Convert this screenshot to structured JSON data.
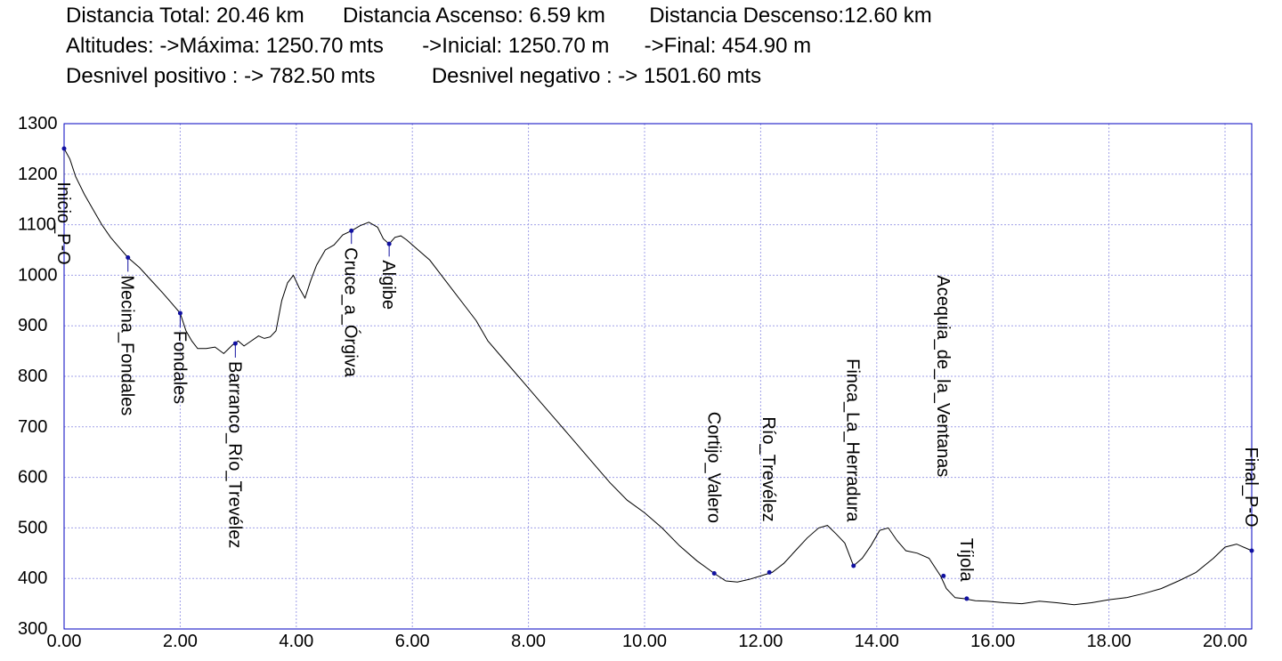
{
  "stats": {
    "row1": [
      {
        "label": "Distancia Total:",
        "value": "20.46 km"
      },
      {
        "label": "Distancia Ascenso:",
        "value": "6.59 km"
      },
      {
        "label": "Distancia Descenso:",
        "value": "12.60 km"
      }
    ],
    "row2": [
      {
        "label": "Altitudes: ->Máxima:",
        "value": "1250.70 mts"
      },
      {
        "label": "->Inicial:",
        "value": "1250.70 m"
      },
      {
        "label": "->Final:",
        "value": "454.90 m"
      }
    ],
    "row3": [
      {
        "label": "Desnivel positivo : ->",
        "value": "782.50 mts"
      },
      {
        "label": "Desnivel negativo : ->",
        "value": "1501.60 mts"
      }
    ]
  },
  "chart_data": {
    "type": "line",
    "title": "",
    "xlabel": "",
    "ylabel": "",
    "xlim": [
      0,
      20.46
    ],
    "ylim": [
      300,
      1300
    ],
    "grid": true,
    "x_ticks": [
      0,
      2,
      4,
      6,
      8,
      10,
      12,
      14,
      16,
      18,
      20
    ],
    "x_tick_labels": [
      "0.00",
      "2.00",
      "4.00",
      "6.00",
      "8.00",
      "10.00",
      "12.00",
      "14.00",
      "16.00",
      "18.00",
      "20.00"
    ],
    "y_ticks": [
      300,
      400,
      500,
      600,
      700,
      800,
      900,
      1000,
      1100,
      1200,
      1300
    ],
    "y_tick_labels": [
      "300",
      "400",
      "500",
      "600",
      "700",
      "800",
      "900",
      "1000",
      "1100",
      "1200",
      "1300"
    ],
    "colors": {
      "line": "#000000",
      "grid": "#a0a0e8",
      "frame": "#0000c0",
      "waypoint": "#1010a0"
    },
    "series": [
      {
        "x": [
          0,
          0.1,
          0.2,
          0.35,
          0.5,
          0.65,
          0.8,
          0.95,
          1.1,
          1.3,
          1.5,
          1.7,
          1.85,
          2.0,
          2.1,
          2.2,
          2.3,
          2.45,
          2.6,
          2.75,
          2.9,
          3.0,
          3.1,
          3.2,
          3.35,
          3.45,
          3.55,
          3.65,
          3.75,
          3.85,
          3.95,
          4.05,
          4.15,
          4.25,
          4.35,
          4.5,
          4.65,
          4.8,
          4.95,
          5.1,
          5.25,
          5.4,
          5.5,
          5.6,
          5.7,
          5.8,
          5.9,
          6.1,
          6.3,
          6.5,
          6.7,
          6.9,
          7.1,
          7.3,
          7.6,
          7.9,
          8.2,
          8.5,
          8.8,
          9.1,
          9.4,
          9.7,
          10.0,
          10.3,
          10.6,
          10.9,
          11.2,
          11.4,
          11.6,
          11.8,
          12.0,
          12.2,
          12.4,
          12.6,
          12.8,
          13.0,
          13.15,
          13.3,
          13.45,
          13.6,
          13.75,
          13.9,
          14.05,
          14.2,
          14.35,
          14.5,
          14.7,
          14.9,
          15.1,
          15.2,
          15.35,
          15.5,
          15.7,
          15.9,
          16.2,
          16.5,
          16.8,
          17.1,
          17.4,
          17.7,
          18.0,
          18.3,
          18.6,
          18.9,
          19.2,
          19.5,
          19.8,
          20.0,
          20.2,
          20.46
        ],
        "y": [
          1250.7,
          1230,
          1195,
          1160,
          1130,
          1100,
          1075,
          1055,
          1035,
          1015,
          990,
          965,
          945,
          925,
          890,
          870,
          855,
          855,
          858,
          845,
          862,
          870,
          860,
          868,
          880,
          875,
          878,
          890,
          950,
          985,
          1000,
          975,
          955,
          990,
          1020,
          1050,
          1060,
          1080,
          1088,
          1098,
          1105,
          1095,
          1072,
          1062,
          1075,
          1078,
          1070,
          1050,
          1030,
          1000,
          970,
          940,
          910,
          870,
          830,
          790,
          750,
          710,
          670,
          630,
          590,
          555,
          530,
          500,
          465,
          435,
          410,
          395,
          393,
          398,
          405,
          412,
          430,
          455,
          480,
          500,
          505,
          488,
          470,
          425,
          440,
          465,
          495,
          500,
          475,
          455,
          450,
          440,
          405,
          380,
          362,
          360,
          356,
          355,
          352,
          350,
          355,
          352,
          348,
          352,
          358,
          362,
          370,
          380,
          395,
          412,
          440,
          462,
          468,
          454.9
        ]
      }
    ],
    "waypoints": [
      {
        "name": "Inicio_P-O",
        "x": 0,
        "y": 1250.7,
        "label_top_y": 1185
      },
      {
        "name": "Mecina_Fondales",
        "x": 1.1,
        "y": 1035,
        "label_top_y": 1000
      },
      {
        "name": "Fondales",
        "x": 2.0,
        "y": 925,
        "label_top_y": 890
      },
      {
        "name": "Barranco_Río_Trevélez",
        "x": 2.95,
        "y": 865,
        "label_top_y": 830
      },
      {
        "name": "Cruce_a_Órgiva",
        "x": 4.95,
        "y": 1088,
        "label_top_y": 1055
      },
      {
        "name": "Algibe",
        "x": 5.6,
        "y": 1062,
        "label_top_y": 1030
      },
      {
        "name": "Cortijo_Valero",
        "x": 11.2,
        "y": 410,
        "label_top_y": 730
      },
      {
        "name": "Río_Trevélez",
        "x": 12.15,
        "y": 412,
        "label_top_y": 720
      },
      {
        "name": "Finca_La_Herradura",
        "x": 13.6,
        "y": 425,
        "label_top_y": 835
      },
      {
        "name": "Acequia_de_la_Ventanas",
        "x": 15.15,
        "y": 405,
        "label_top_y": 1000
      },
      {
        "name": "Tíjola",
        "x": 15.55,
        "y": 360,
        "label_top_y": 480
      },
      {
        "name": "Final_P-O",
        "x": 20.46,
        "y": 454.9,
        "label_top_y": 660
      }
    ]
  }
}
